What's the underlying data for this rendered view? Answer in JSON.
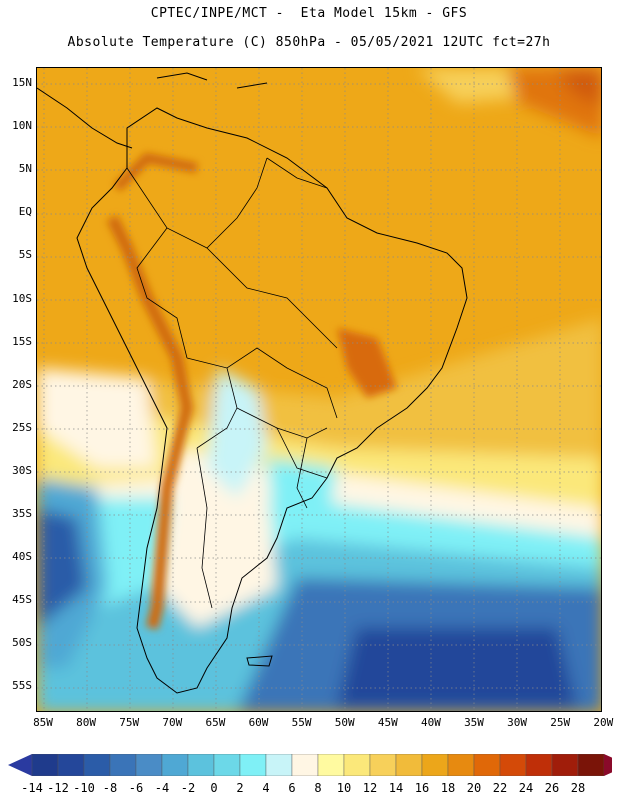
{
  "title": {
    "line1": "CPTEC/INPE/MCT -  Eta Model 15km - GFS",
    "line2": "Absolute Temperature (C) 850hPa - 05/05/2021 12UTC fct=27h"
  },
  "map": {
    "lat_ticks": [
      "15N",
      "10N",
      "5N",
      "EQ",
      "5S",
      "10S",
      "15S",
      "20S",
      "25S",
      "30S",
      "35S",
      "40S",
      "45S",
      "50S",
      "55S"
    ],
    "lon_ticks": [
      "85W",
      "80W",
      "75W",
      "70W",
      "65W",
      "60W",
      "55W",
      "50W",
      "45W",
      "40W",
      "35W",
      "30W",
      "25W",
      "20W"
    ],
    "grid": "dotted"
  },
  "colorbar": {
    "labels": [
      "-14",
      "-12",
      "-10",
      "-8",
      "-6",
      "-4",
      "-2",
      "0",
      "2",
      "4",
      "6",
      "8",
      "10",
      "12",
      "14",
      "16",
      "18",
      "20",
      "22",
      "24",
      "26",
      "28"
    ],
    "colors": [
      "#1f3b8c",
      "#24479a",
      "#2b5ca8",
      "#3a74b8",
      "#4a8cc6",
      "#4fa8d4",
      "#5cc2dd",
      "#6cd8e8",
      "#7ff0f6",
      "#c8f4f8",
      "#fff6e4",
      "#fffaa0",
      "#fbe87a",
      "#f7d05a",
      "#f1bb3a",
      "#eca61a",
      "#e78a10",
      "#e06808",
      "#d44a08",
      "#bf2f08",
      "#a01d0a",
      "#7a1408"
    ],
    "under_color": "#2a3aa0",
    "over_color": "#8a0a2a"
  }
}
